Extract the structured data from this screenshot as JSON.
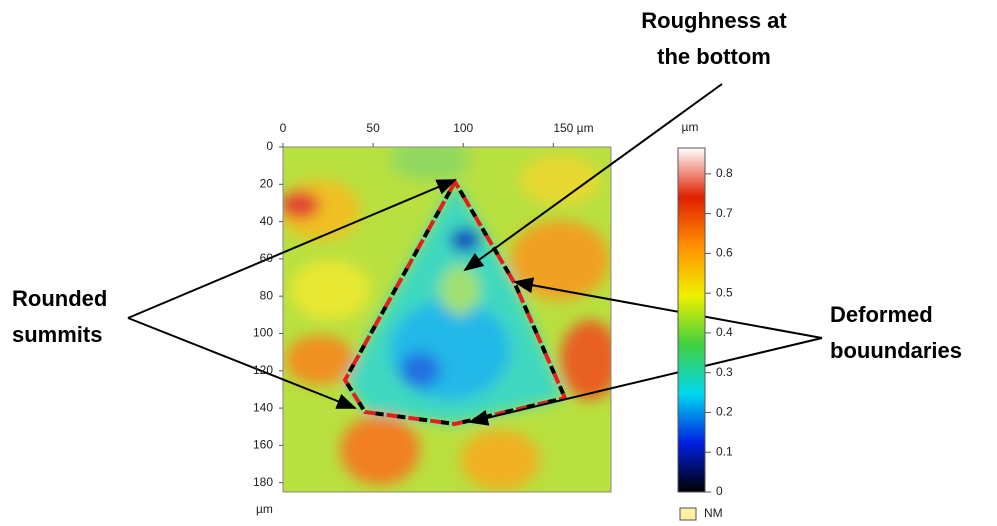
{
  "chart_data": {
    "type": "heatmap",
    "xlim": [
      0,
      182
    ],
    "xticks": [
      0,
      50,
      100,
      {
        "value": 150,
        "label": "150 µm"
      }
    ],
    "ylim": [
      0,
      185
    ],
    "yticks": [
      0,
      20,
      40,
      60,
      80,
      100,
      120,
      140,
      160,
      180
    ],
    "y_unit": "µm",
    "colorbar": {
      "label": "µm",
      "clim": [
        0,
        0.865
      ],
      "ticks": [
        0,
        0.1,
        0.2,
        0.3,
        0.4,
        0.5,
        0.6,
        0.7,
        0.8
      ],
      "missing_label": "NM",
      "colors": [
        "#000000",
        "#0020e0",
        "#00d8f0",
        "#40d040",
        "#f0f000",
        "#ff9000",
        "#e02000",
        "#ffffff"
      ]
    },
    "annotations": [
      {
        "lines": [
          "Roughness at",
          "the bottom"
        ]
      },
      {
        "lines": [
          "Rounded",
          "summits"
        ]
      },
      {
        "lines": [
          "Deformed",
          "bouundaries"
        ]
      }
    ]
  }
}
